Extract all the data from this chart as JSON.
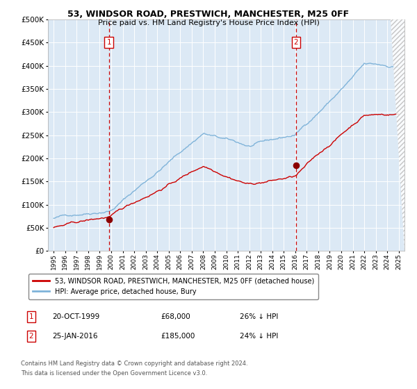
{
  "title": "53, WINDSOR ROAD, PRESTWICH, MANCHESTER, M25 0FF",
  "subtitle": "Price paid vs. HM Land Registry's House Price Index (HPI)",
  "background_color": "#dce9f5",
  "outer_bg_color": "#ffffff",
  "hpi_color": "#7fb3d9",
  "price_color": "#cc0000",
  "marker_color": "#8b0000",
  "vline_color": "#cc0000",
  "grid_color": "#ffffff",
  "ylim": [
    0,
    500000
  ],
  "yticks": [
    0,
    50000,
    100000,
    150000,
    200000,
    250000,
    300000,
    350000,
    400000,
    450000,
    500000
  ],
  "sale1_year": 1999.8,
  "sale1_price": 68000,
  "sale1_label": "1",
  "sale1_date": "20-OCT-1999",
  "sale1_price_str": "£68,000",
  "sale1_hpi_pct": "26% ↓ HPI",
  "sale2_year": 2016.07,
  "sale2_price": 185000,
  "sale2_label": "2",
  "sale2_date": "25-JAN-2016",
  "sale2_price_str": "£185,000",
  "sale2_hpi_pct": "24% ↓ HPI",
  "legend_label1": "53, WINDSOR ROAD, PRESTWICH, MANCHESTER, M25 0FF (detached house)",
  "legend_label2": "HPI: Average price, detached house, Bury",
  "footer1": "Contains HM Land Registry data © Crown copyright and database right 2024.",
  "footer2": "This data is licensed under the Open Government Licence v3.0.",
  "xtick_years": [
    1995,
    1996,
    1997,
    1998,
    1999,
    2000,
    2001,
    2002,
    2003,
    2004,
    2005,
    2006,
    2007,
    2008,
    2009,
    2010,
    2011,
    2012,
    2013,
    2014,
    2015,
    2016,
    2017,
    2018,
    2019,
    2020,
    2021,
    2022,
    2023,
    2024,
    2025
  ]
}
